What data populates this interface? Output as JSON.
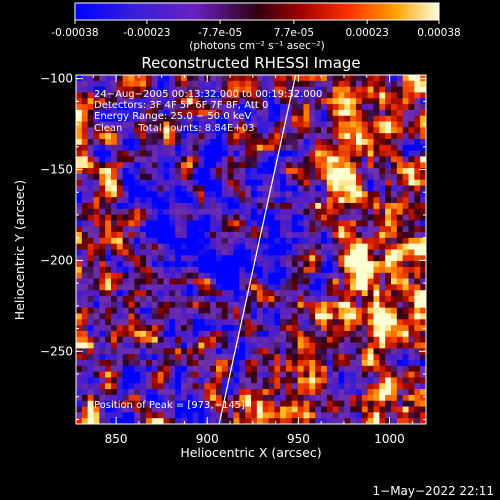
{
  "colorbar": {
    "tick_labels": [
      "-0.00038",
      "-0.00023",
      "-7.7e-05",
      "7.7e-05",
      "0.00023",
      "0.00038"
    ],
    "unit_label": "(photons cm⁻² s⁻¹ asec⁻²)",
    "range": [
      -0.00038,
      0.00038
    ]
  },
  "chart_data": {
    "type": "heatmap",
    "title": "Reconstructed RHESSI Image",
    "xlabel": "Heliocentric X (arcsec)",
    "ylabel": "Heliocentric Y (arcsec)",
    "xlim": [
      828,
      1020
    ],
    "ylim": [
      -290,
      -98
    ],
    "x_ticks": [
      850,
      900,
      950,
      1000
    ],
    "y_ticks": [
      -100,
      -150,
      -200,
      -250
    ],
    "x_tick_labels": [
      "850",
      "900",
      "950",
      "1000"
    ],
    "y_tick_labels": [
      "−100",
      "−150",
      "−200",
      "−250"
    ],
    "limb_line": {
      "x": [
        906.5,
        948.5
      ],
      "y": [
        -290,
        -98
      ]
    },
    "peak_position": [
      973,
      -145
    ],
    "info_lines": [
      "24−Aug−2005 00:13:32.000 to 00:19:32.000",
      "Detectors: 3F 4F 5F 6F 7F 8F, Att 0",
      "Energy Range: 25.0 − 50.0 keV",
      "Clean     Total counts: 8.84E+03"
    ],
    "peak_label": "Position of Peak = [973,−145]"
  },
  "timestamp": "1−May−2022 22:11"
}
